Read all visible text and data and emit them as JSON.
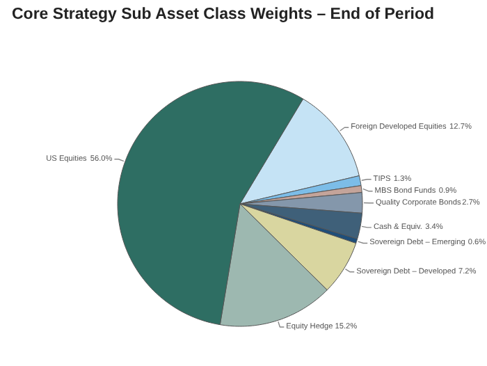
{
  "chart_data": {
    "type": "pie",
    "title": "Core Strategy Sub Asset Class Weights – End of Period",
    "categories": [
      "Foreign Developed Equities",
      "TIPS",
      "MBS Bond Funds",
      "Quality Corporate Bonds",
      "Cash & Equiv.",
      "Sovereign Debt – Emerging",
      "Sovereign Debt – Developed",
      "Equity Hedge",
      "US Equities"
    ],
    "values": [
      12.7,
      1.3,
      0.9,
      2.7,
      3.4,
      0.6,
      7.2,
      15.2,
      56.0
    ],
    "colors": [
      "#c5e3f5",
      "#7cbde8",
      "#c4a49a",
      "#8497ab",
      "#3f6079",
      "#1f4e79",
      "#d9d6a0",
      "#9db8b0",
      "#2e6e63"
    ],
    "value_labels": [
      "12.7%",
      "1.3%",
      "0.9%",
      "2.7%",
      "3.4%",
      "0.6%",
      "7.2%",
      "15.2%",
      "56.0%"
    ]
  }
}
